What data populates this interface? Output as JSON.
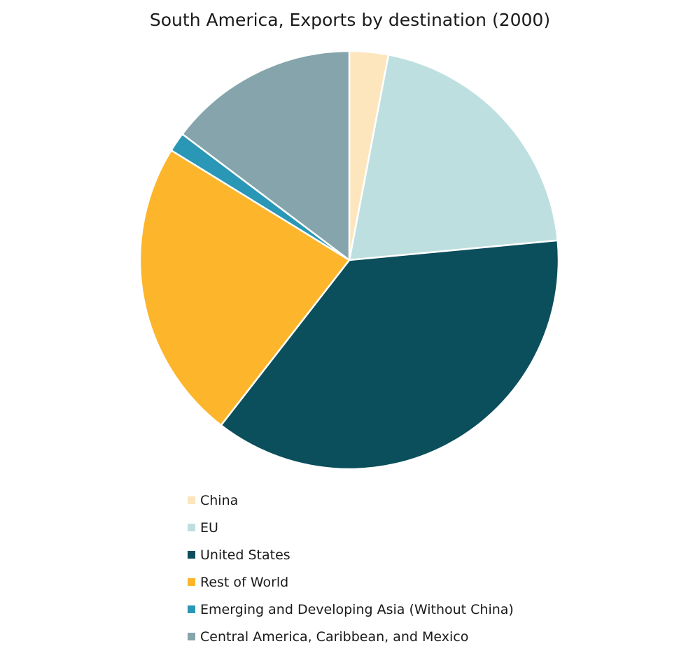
{
  "chart_data": {
    "type": "pie",
    "title": "South America, Exports by destination (2000)",
    "unit": "% of exports",
    "categories": [
      "China",
      "EU",
      "United States",
      "Rest of World",
      "Emerging and Developing Asia (Without China)",
      "Central America, Caribbean, and Mexico"
    ],
    "values": [
      3.0,
      20.5,
      37.0,
      23.3,
      1.5,
      14.7
    ],
    "colors": [
      "#fde5bd",
      "#bedfe0",
      "#0b4e5c",
      "#fdb52b",
      "#2a97b6",
      "#85a4ab"
    ],
    "start_angle_deg": 0,
    "direction": "clockwise",
    "legend_position": "bottom"
  }
}
